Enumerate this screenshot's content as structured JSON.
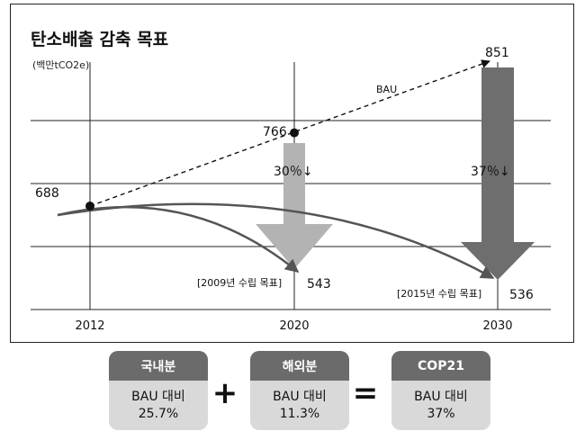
{
  "chart_data": {
    "type": "line",
    "title": "탄소배출 감축 목표",
    "unit_label": "(백만tCO2e)",
    "categories": [
      "2012",
      "2020",
      "2030"
    ],
    "series": [
      {
        "name": "BAU",
        "x": [
          "2012",
          "2020",
          "2030"
        ],
        "values": [
          688,
          766,
          851
        ],
        "style": "dashed"
      }
    ],
    "point_labels": {
      "bau_2012": "688",
      "bau_2020": "766",
      "bau_2030": "851"
    },
    "reductions": [
      {
        "year": "2020",
        "percent_label": "30％↓",
        "target_value": 543,
        "target_label": "543",
        "plan_label": "[2009년 수립 목표]",
        "color": "#b3b3b3"
      },
      {
        "year": "2030",
        "percent_label": "37％↓",
        "target_value": 536,
        "target_label": "536",
        "plan_label": "[2015년 수립 목표]",
        "color": "#6e6e6e"
      }
    ],
    "grid": true
  },
  "summary": {
    "boxes": [
      {
        "header": "국내분",
        "line1": "BAU 대비",
        "line2": "25.7%"
      },
      {
        "header": "해외분",
        "line1": "BAU 대비",
        "line2": "11.3%"
      },
      {
        "header": "COP21",
        "line1": "BAU 대비",
        "line2": "37%"
      }
    ],
    "operators": [
      "+",
      "="
    ]
  }
}
